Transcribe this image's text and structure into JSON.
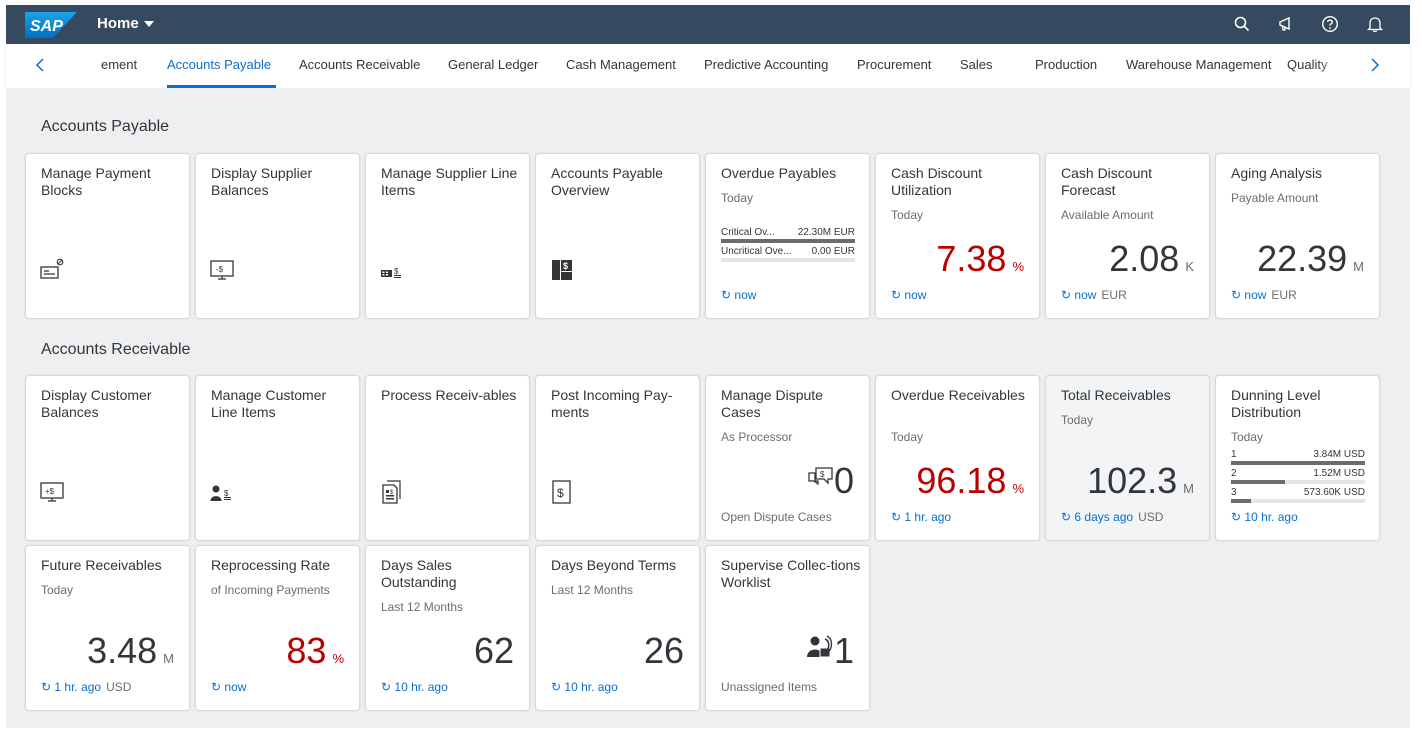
{
  "shell": {
    "logo_text": "SAP",
    "title": "Home",
    "icons": [
      "search-icon",
      "megaphone-icon",
      "help-icon",
      "bell-icon"
    ]
  },
  "tabs": {
    "items": [
      {
        "label": "ement"
      },
      {
        "label": "Accounts Payable",
        "active": true
      },
      {
        "label": "Accounts Receivable"
      },
      {
        "label": "General Ledger"
      },
      {
        "label": "Cash Management"
      },
      {
        "label": "Predictive Accounting"
      },
      {
        "label": "Procurement"
      },
      {
        "label": "Sales"
      },
      {
        "label": "Production"
      },
      {
        "label": "Warehouse Management"
      },
      {
        "label": "Quality"
      }
    ]
  },
  "groups": {
    "payable": {
      "title": "Accounts Payable",
      "tiles": {
        "manage_payment_blocks": {
          "title": "Manage Payment Blocks",
          "icon": "payment-block-icon"
        },
        "display_supplier_balances": {
          "title": "Display Supplier Balances",
          "icon": "monitor-payments-icon"
        },
        "manage_supplier_line_items": {
          "title": "Manage Supplier Line Items",
          "icon": "line-items-icon"
        },
        "ap_overview": {
          "title": "Accounts Payable Overview",
          "icon": "overview-icon"
        },
        "overdue_payables": {
          "title": "Overdue Payables",
          "subtitle": "Today",
          "rows": [
            {
              "label": "Critical Ov...",
              "value": "22.30M EUR",
              "fraction": 1.0
            },
            {
              "label": "Uncritical Ove...",
              "value": "0.00 EUR",
              "fraction": 0.0
            }
          ],
          "refresh": "now"
        },
        "cash_discount_utilization": {
          "title": "Cash Discount Utilization",
          "subtitle": "Today",
          "value": "7.38",
          "scale": "%",
          "refresh": "now"
        },
        "cash_discount_forecast": {
          "title": "Cash Discount Forecast",
          "subtitle": "Available Amount",
          "value": "2.08",
          "scale": "K",
          "refresh": "now",
          "unit": "EUR"
        },
        "aging_analysis": {
          "title": "Aging Analysis",
          "subtitle": "Payable Amount",
          "value": "22.39",
          "scale": "M",
          "refresh": "now",
          "unit": "EUR"
        }
      }
    },
    "receivable": {
      "title": "Accounts Receivable",
      "tiles": {
        "display_customer_balances": {
          "title": "Display Customer Balances",
          "icon": "monitor-payments-icon"
        },
        "manage_customer_line_items": {
          "title": "Manage Customer Line Items",
          "icon": "customer-items-icon"
        },
        "process_receivables": {
          "title": "Process Receiv-ables",
          "icon": "documents-icon"
        },
        "post_incoming_payments": {
          "title": "Post Incoming Pay-ments",
          "icon": "dollar-document-icon"
        },
        "manage_dispute_cases": {
          "title": "Manage Dispute Cases",
          "subtitle": "As Processor",
          "value": "0",
          "icon": "dispute-icon",
          "footer": "Open Dispute Cases"
        },
        "overdue_receivables": {
          "title": "Overdue Receivables",
          "subtitle": "Today",
          "value": "96.18",
          "scale": "%",
          "refresh": "1 hr. ago"
        },
        "total_receivables": {
          "title": "Total Receivables",
          "subtitle": "Today",
          "value": "102.3",
          "scale": "M",
          "refresh": "6 days ago",
          "unit": "USD"
        },
        "dunning_level_distribution": {
          "title": "Dunning Level Distribution",
          "subtitle": "Today",
          "rows": [
            {
              "label": "1",
              "value": "3.84M USD",
              "fraction": 1.0
            },
            {
              "label": "2",
              "value": "1.52M USD",
              "fraction": 0.4
            },
            {
              "label": "3",
              "value": "573.60K USD",
              "fraction": 0.15
            }
          ],
          "refresh": "10 hr. ago"
        },
        "future_receivables": {
          "title": "Future Receivables",
          "subtitle": "Today",
          "value": "3.48",
          "scale": "M",
          "refresh": "1 hr. ago",
          "unit": "USD"
        },
        "reprocessing_rate": {
          "title": "Reprocessing Rate",
          "subtitle": "of Incoming Payments",
          "value": "83",
          "scale": "%",
          "refresh": "now"
        },
        "days_sales_outstanding": {
          "title": "Days Sales Outstanding",
          "subtitle": "Last 12 Months",
          "value": "62",
          "refresh": "10 hr. ago"
        },
        "days_beyond_terms": {
          "title": "Days Beyond Terms",
          "subtitle": "Last 12 Months",
          "value": "26",
          "refresh": "10 hr. ago"
        },
        "supervise_collections": {
          "title": "Supervise Collec-tions Worklist",
          "value": "1",
          "icon": "collections-icon",
          "footer": "Unassigned Items"
        }
      }
    }
  }
}
